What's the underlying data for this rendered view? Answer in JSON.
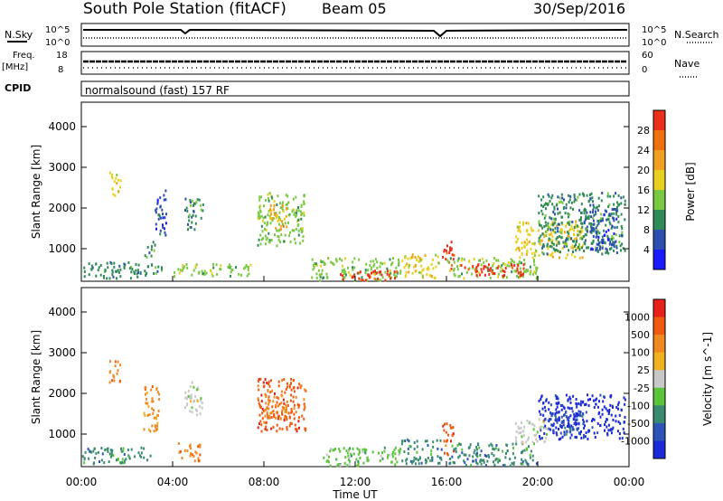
{
  "header": {
    "station_title": "South Pole Station (fitACF)",
    "beam": "Beam 05",
    "date": "30/Sep/2016"
  },
  "top_strip": {
    "nsky_label": "N.Sky",
    "nsky_ticks": [
      "10^5",
      "10^0"
    ],
    "nsearch_label": "N.Search",
    "nsearch_ticks": [
      "10^5",
      "10^0"
    ],
    "freq_label": "Freq.",
    "freq_unit": "[MHz]",
    "freq_ticks": [
      "18",
      "8"
    ],
    "nave_label": "Nave",
    "nave_ticks": [
      "60",
      "0"
    ],
    "cpid_label": "CPID",
    "cpid_value": "normalsound (fast) 157 RF"
  },
  "chart_data": [
    {
      "type": "heatmap",
      "panel": "power",
      "ylabel": "Slant Range [km]",
      "ylim": [
        200,
        4600
      ],
      "y_ticks": [
        1000,
        2000,
        3000,
        4000
      ],
      "xlim": [
        0,
        24
      ],
      "colorbar": {
        "label": "Power [dB]",
        "ticks": [
          "4",
          "8",
          "12",
          "16",
          "20",
          "24",
          "28"
        ],
        "colors": [
          "#1a1aff",
          "#2d4fb0",
          "#2e8b57",
          "#7ac943",
          "#e8d020",
          "#f0a020",
          "#f07010",
          "#e8301a"
        ]
      },
      "regions": [
        {
          "t": [
            0.0,
            3.5
          ],
          "r": [
            300,
            700
          ],
          "color": 2
        },
        {
          "t": [
            1.2,
            1.7
          ],
          "r": [
            2300,
            2900
          ],
          "color": 4
        },
        {
          "t": [
            2.7,
            3.2
          ],
          "r": [
            800,
            1200
          ],
          "color": 2
        },
        {
          "t": [
            3.2,
            3.7
          ],
          "r": [
            1300,
            2500
          ],
          "color": 1
        },
        {
          "t": [
            4.5,
            5.3
          ],
          "r": [
            1500,
            2300
          ],
          "color": 2
        },
        {
          "t": [
            4.0,
            7.5
          ],
          "r": [
            350,
            650
          ],
          "color": 3
        },
        {
          "t": [
            7.7,
            9.8
          ],
          "r": [
            1100,
            2400
          ],
          "color": 3
        },
        {
          "t": [
            8.2,
            9.0
          ],
          "r": [
            1500,
            2100
          ],
          "color": 5
        },
        {
          "t": [
            10.0,
            14.0
          ],
          "r": [
            250,
            800
          ],
          "color": 3
        },
        {
          "t": [
            11.3,
            14.0
          ],
          "r": [
            250,
            500
          ],
          "color": 7
        },
        {
          "t": [
            14.0,
            15.8
          ],
          "r": [
            300,
            900
          ],
          "color": 4
        },
        {
          "t": [
            15.8,
            16.3
          ],
          "r": [
            500,
            1200
          ],
          "color": 7
        },
        {
          "t": [
            16.0,
            20.0
          ],
          "r": [
            300,
            800
          ],
          "color": 3
        },
        {
          "t": [
            16.5,
            19.5
          ],
          "r": [
            350,
            650
          ],
          "color": 7
        },
        {
          "t": [
            19.0,
            22.0
          ],
          "r": [
            800,
            1700
          ],
          "color": 4
        },
        {
          "t": [
            20.0,
            23.8
          ],
          "r": [
            900,
            2400
          ],
          "color": 2
        },
        {
          "t": [
            22.0,
            23.5
          ],
          "r": [
            1000,
            2000
          ],
          "color": 1
        }
      ]
    },
    {
      "type": "heatmap",
      "panel": "velocity",
      "ylabel": "Slant Range [km]",
      "xlabel": "Time UT",
      "ylim": [
        200,
        4600
      ],
      "y_ticks": [
        1000,
        2000,
        3000,
        4000
      ],
      "xlim": [
        0,
        24
      ],
      "x_ticks": [
        "00:00",
        "04:00",
        "08:00",
        "12:00",
        "16:00",
        "20:00",
        "00:00"
      ],
      "colorbar": {
        "label": "Velocity [m s^-1]",
        "ticks": [
          "1000",
          "500",
          "100",
          "25",
          "-25",
          "-100",
          "-500",
          "-1000"
        ],
        "colors": [
          "#1a2ad8",
          "#2d55b8",
          "#3a8a70",
          "#5ac43a",
          "#c8c8c8",
          "#f0b020",
          "#f08a20",
          "#f05a10",
          "#e8201a"
        ]
      },
      "regions": [
        {
          "t": [
            0.0,
            3.0
          ],
          "r": [
            300,
            700
          ],
          "color": 2
        },
        {
          "t": [
            1.2,
            1.7
          ],
          "r": [
            2300,
            2900
          ],
          "color": 6
        },
        {
          "t": [
            2.7,
            3.4
          ],
          "r": [
            1100,
            2200
          ],
          "color": 6
        },
        {
          "t": [
            4.2,
            5.2
          ],
          "r": [
            350,
            800
          ],
          "color": 6
        },
        {
          "t": [
            4.5,
            5.3
          ],
          "r": [
            1500,
            2300
          ],
          "color": 4
        },
        {
          "t": [
            7.7,
            9.8
          ],
          "r": [
            1100,
            2400
          ],
          "color": 7
        },
        {
          "t": [
            8.0,
            9.0
          ],
          "r": [
            1400,
            2100
          ],
          "color": 6
        },
        {
          "t": [
            10.5,
            14.0
          ],
          "r": [
            250,
            700
          ],
          "color": 3
        },
        {
          "t": [
            14.0,
            15.8
          ],
          "r": [
            300,
            900
          ],
          "color": 2
        },
        {
          "t": [
            15.8,
            16.3
          ],
          "r": [
            500,
            1300
          ],
          "color": 7
        },
        {
          "t": [
            16.0,
            20.0
          ],
          "r": [
            250,
            800
          ],
          "color": 2
        },
        {
          "t": [
            19.0,
            20.5
          ],
          "r": [
            800,
            1400
          ],
          "color": 4
        },
        {
          "t": [
            20.0,
            23.8
          ],
          "r": [
            900,
            2000
          ],
          "color": 0
        },
        {
          "t": [
            20.5,
            22.0
          ],
          "r": [
            1000,
            1600
          ],
          "color": 1
        }
      ]
    }
  ]
}
